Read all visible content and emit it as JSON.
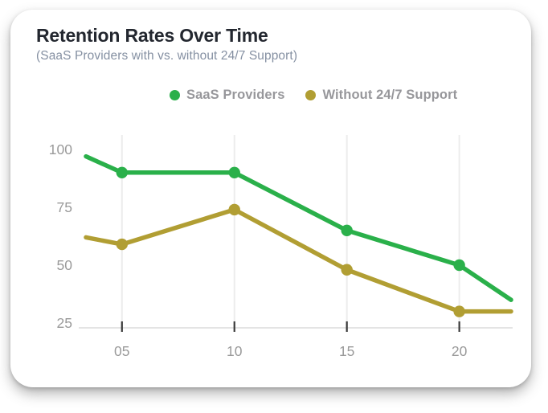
{
  "card": {
    "title": "Retention Rates Over Time",
    "subtitle": "(SaaS Providers with vs. without 24/7 Support)"
  },
  "legend": {
    "items": [
      {
        "label": "SaaS Providers",
        "color": "#2ab04a"
      },
      {
        "label": "Without 24/7 Support",
        "color": "#b19e33"
      }
    ]
  },
  "chart_data": {
    "type": "line",
    "title": "Retention Rates Over Time",
    "subtitle": "(SaaS Providers with vs. without 24/7 Support)",
    "xlabel": "",
    "ylabel": "",
    "x_tick_labels": [
      "05",
      "10",
      "15",
      "20"
    ],
    "x_tick_values": [
      5,
      10,
      15,
      20
    ],
    "y_tick_labels": [
      "100",
      "75",
      "50",
      "25"
    ],
    "y_tick_values": [
      100,
      75,
      50,
      25
    ],
    "x_range": [
      3.4,
      22.3
    ],
    "y_range": [
      25,
      100
    ],
    "grid": "vertical-only",
    "legend_position": "top-center",
    "series": [
      {
        "name": "SaaS Providers",
        "color": "#2ab04a",
        "x": [
          3.4,
          5,
          10,
          15,
          20,
          22.3
        ],
        "values": [
          97,
          90,
          90,
          65,
          50,
          35
        ],
        "markers_at_x": [
          5,
          10,
          15,
          20
        ]
      },
      {
        "name": "Without 24/7 Support",
        "color": "#b19e33",
        "x": [
          3.4,
          5,
          10,
          15,
          20,
          22.3
        ],
        "values": [
          62,
          59,
          74,
          48,
          30,
          30
        ],
        "markers_at_x": [
          5,
          10,
          15,
          20
        ]
      }
    ],
    "style_colors": {
      "gridline": "#ececec",
      "axis_line": "#e4e4e4",
      "tick_mark": "#3a3a3a",
      "tick_label": "#9a9a9a"
    }
  }
}
